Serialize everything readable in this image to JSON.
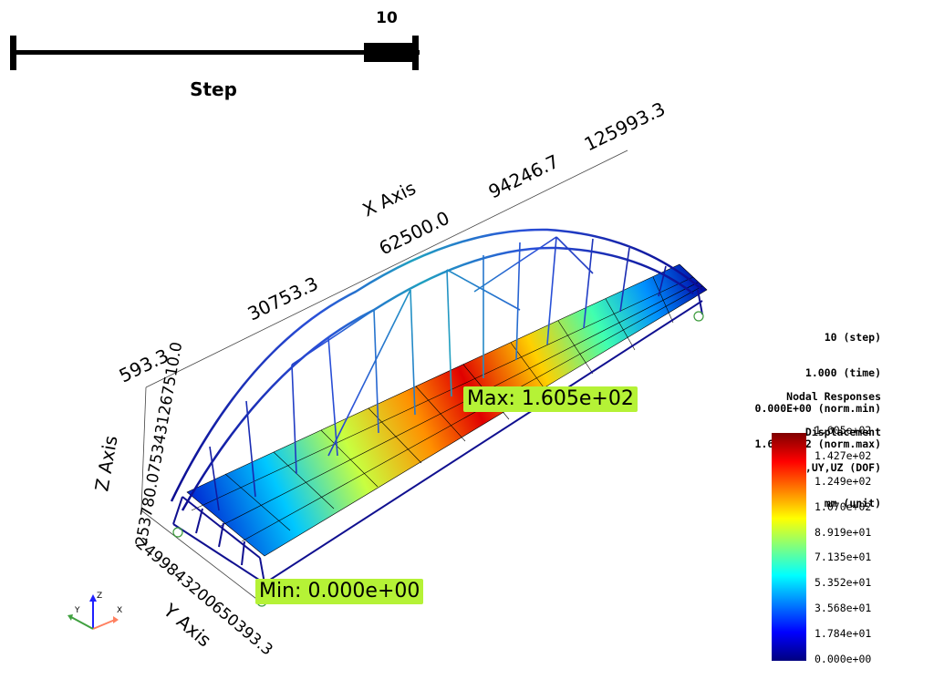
{
  "slider": {
    "value": "10",
    "title": "Step"
  },
  "info_lines": [
    "10 (step)",
    "1.000 (time)",
    "0.000E+00 (norm.min)",
    "1.605E+02 (norm.max)"
  ],
  "response_lines": [
    "Nodal Responses",
    "Displacement",
    "UX,UY,UZ (DOF)",
    "mm (unit)"
  ],
  "colorbar": {
    "ticks": [
      "1.605e+02",
      "1.427e+02",
      "1.249e+02",
      "1.070e+02",
      "8.919e+01",
      "7.135e+01",
      "5.352e+01",
      "3.568e+01",
      "1.784e+01",
      "0.000e+00"
    ],
    "colors": [
      "#7f0000",
      "#ff0000",
      "#ff7f00",
      "#ffff00",
      "#7fff7f",
      "#00ffff",
      "#007fff",
      "#0000ff",
      "#00007f"
    ]
  },
  "labels": {
    "max": "Max:  1.605e+02",
    "min": "Min:  0.000e+00",
    "x_axis": "X Axis",
    "y_axis": "Y Axis",
    "z_axis": "Z Axis",
    "x_ticks": [
      "30753.3",
      "62500.0",
      "94246.7",
      "125993.3"
    ],
    "y_ticks": "2499843200650393.3",
    "z_ticks": "593.3",
    "z_ticks_stack": "253780.0753431267510.0"
  },
  "orientation": {
    "x": "X",
    "y": "Y",
    "z": "Z"
  }
}
